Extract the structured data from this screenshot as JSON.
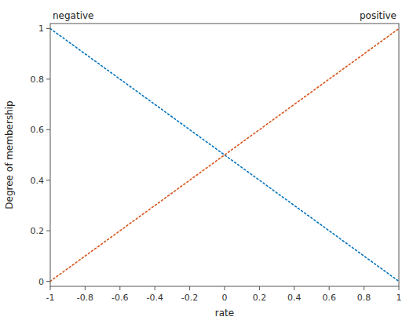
{
  "chart_data": {
    "type": "line",
    "x": [
      -1,
      1
    ],
    "series": [
      {
        "values": [
          1,
          0
        ],
        "color": "#0072BD",
        "line_style": "dotted"
      },
      {
        "values": [
          0,
          1
        ],
        "color": "#D95319",
        "line_style": "dotted"
      }
    ],
    "xlabel": "rate",
    "ylabel": "Degree of membership",
    "annotations": [
      "negative",
      "positive"
    ],
    "xlim": [
      -1,
      1
    ],
    "ylim": [
      -0.02,
      1.02
    ],
    "xticks": [
      -1,
      -0.8,
      -0.6,
      -0.4,
      -0.2,
      0,
      0.2,
      0.4,
      0.6,
      0.8,
      1
    ],
    "yticks": [
      0,
      0.2,
      0.4,
      0.6,
      0.8,
      1
    ],
    "grid": false
  }
}
